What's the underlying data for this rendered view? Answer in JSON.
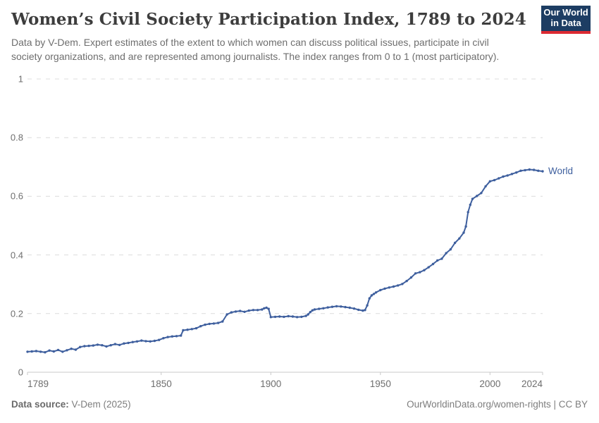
{
  "header": {
    "title": "Women’s Civil Society Participation Index, 1789 to 2024",
    "subtitle": "Data by V-Dem. Expert estimates of the extent to which women can discuss political issues, participate in civil\nsociety organizations, and are represented among journalists. The index ranges from 0 to 1 (most participatory)."
  },
  "logo": {
    "line1": "Our World",
    "line2": "in Data",
    "bg_color": "#1d3d63",
    "accent_color": "#dc2a32"
  },
  "chart_data": {
    "type": "line",
    "title": "Women's Civil Society Participation Index, 1789 to 2024",
    "xlabel": "",
    "ylabel": "",
    "xlim": [
      1789,
      2024
    ],
    "ylim": [
      0,
      1
    ],
    "xticks": [
      1789,
      1850,
      1900,
      1950,
      2000,
      2024
    ],
    "yticks": [
      0,
      0.2,
      0.4,
      0.6,
      0.8,
      1
    ],
    "grid": "horizontal-dashed",
    "legend_position": "line-end-label",
    "marker": "dot",
    "series": [
      {
        "name": "World",
        "color": "#3e5f9e",
        "points": [
          [
            1789,
            0.07
          ],
          [
            1791,
            0.071
          ],
          [
            1793,
            0.072
          ],
          [
            1795,
            0.07
          ],
          [
            1797,
            0.068
          ],
          [
            1799,
            0.074
          ],
          [
            1801,
            0.071
          ],
          [
            1803,
            0.076
          ],
          [
            1805,
            0.07
          ],
          [
            1807,
            0.075
          ],
          [
            1809,
            0.08
          ],
          [
            1811,
            0.077
          ],
          [
            1813,
            0.086
          ],
          [
            1815,
            0.089
          ],
          [
            1817,
            0.09
          ],
          [
            1819,
            0.091
          ],
          [
            1821,
            0.094
          ],
          [
            1823,
            0.092
          ],
          [
            1825,
            0.088
          ],
          [
            1827,
            0.092
          ],
          [
            1829,
            0.096
          ],
          [
            1831,
            0.093
          ],
          [
            1833,
            0.098
          ],
          [
            1835,
            0.1
          ],
          [
            1837,
            0.103
          ],
          [
            1839,
            0.105
          ],
          [
            1841,
            0.108
          ],
          [
            1843,
            0.106
          ],
          [
            1845,
            0.105
          ],
          [
            1847,
            0.107
          ],
          [
            1849,
            0.11
          ],
          [
            1851,
            0.116
          ],
          [
            1853,
            0.12
          ],
          [
            1855,
            0.122
          ],
          [
            1857,
            0.123
          ],
          [
            1859,
            0.125
          ],
          [
            1860,
            0.143
          ],
          [
            1862,
            0.145
          ],
          [
            1864,
            0.147
          ],
          [
            1866,
            0.15
          ],
          [
            1868,
            0.157
          ],
          [
            1870,
            0.162
          ],
          [
            1872,
            0.165
          ],
          [
            1874,
            0.166
          ],
          [
            1876,
            0.168
          ],
          [
            1878,
            0.173
          ],
          [
            1880,
            0.197
          ],
          [
            1882,
            0.204
          ],
          [
            1884,
            0.207
          ],
          [
            1886,
            0.209
          ],
          [
            1888,
            0.206
          ],
          [
            1890,
            0.21
          ],
          [
            1892,
            0.212
          ],
          [
            1894,
            0.212
          ],
          [
            1896,
            0.214
          ],
          [
            1897,
            0.218
          ],
          [
            1898,
            0.22
          ],
          [
            1899,
            0.216
          ],
          [
            1900,
            0.188
          ],
          [
            1902,
            0.189
          ],
          [
            1904,
            0.19
          ],
          [
            1906,
            0.189
          ],
          [
            1908,
            0.191
          ],
          [
            1910,
            0.19
          ],
          [
            1912,
            0.188
          ],
          [
            1914,
            0.189
          ],
          [
            1916,
            0.192
          ],
          [
            1917,
            0.197
          ],
          [
            1918,
            0.205
          ],
          [
            1919,
            0.211
          ],
          [
            1920,
            0.214
          ],
          [
            1922,
            0.216
          ],
          [
            1924,
            0.218
          ],
          [
            1926,
            0.221
          ],
          [
            1928,
            0.223
          ],
          [
            1930,
            0.225
          ],
          [
            1932,
            0.224
          ],
          [
            1934,
            0.222
          ],
          [
            1936,
            0.22
          ],
          [
            1938,
            0.217
          ],
          [
            1940,
            0.213
          ],
          [
            1942,
            0.21
          ],
          [
            1943,
            0.212
          ],
          [
            1944,
            0.228
          ],
          [
            1945,
            0.252
          ],
          [
            1946,
            0.262
          ],
          [
            1947,
            0.267
          ],
          [
            1948,
            0.272
          ],
          [
            1950,
            0.28
          ],
          [
            1952,
            0.285
          ],
          [
            1954,
            0.289
          ],
          [
            1956,
            0.292
          ],
          [
            1958,
            0.296
          ],
          [
            1960,
            0.301
          ],
          [
            1962,
            0.311
          ],
          [
            1964,
            0.323
          ],
          [
            1966,
            0.337
          ],
          [
            1968,
            0.341
          ],
          [
            1970,
            0.348
          ],
          [
            1972,
            0.358
          ],
          [
            1974,
            0.369
          ],
          [
            1976,
            0.381
          ],
          [
            1978,
            0.387
          ],
          [
            1980,
            0.406
          ],
          [
            1982,
            0.419
          ],
          [
            1984,
            0.441
          ],
          [
            1986,
            0.456
          ],
          [
            1988,
            0.476
          ],
          [
            1989,
            0.497
          ],
          [
            1990,
            0.546
          ],
          [
            1991,
            0.571
          ],
          [
            1992,
            0.591
          ],
          [
            1994,
            0.601
          ],
          [
            1996,
            0.611
          ],
          [
            1998,
            0.634
          ],
          [
            2000,
            0.651
          ],
          [
            2002,
            0.655
          ],
          [
            2004,
            0.661
          ],
          [
            2006,
            0.667
          ],
          [
            2008,
            0.671
          ],
          [
            2010,
            0.676
          ],
          [
            2012,
            0.681
          ],
          [
            2014,
            0.687
          ],
          [
            2016,
            0.689
          ],
          [
            2018,
            0.691
          ],
          [
            2020,
            0.69
          ],
          [
            2022,
            0.687
          ],
          [
            2024,
            0.685
          ]
        ]
      }
    ]
  },
  "footer": {
    "source_label": "Data source:",
    "source_value": " V-Dem (2025)",
    "attribution": "OurWorldinData.org/women-rights | CC BY"
  }
}
